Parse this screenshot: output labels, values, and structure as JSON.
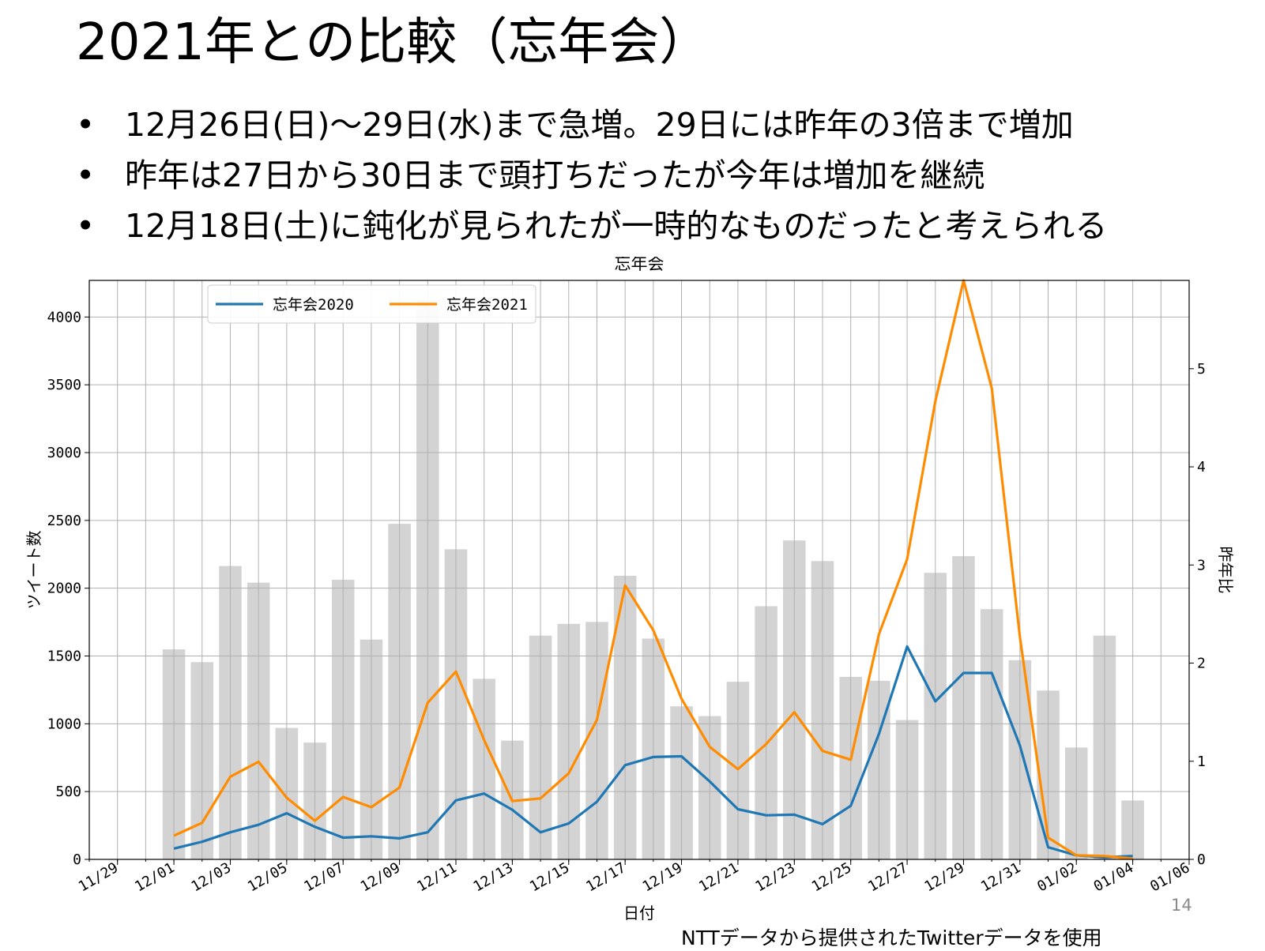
{
  "slide": {
    "title": "2021年との比較（忘年会）",
    "bullets": [
      "12月26日(日)〜29日(水)まで急増。29日には昨年の3倍まで増加",
      "昨年は27日から30日まで頭打ちだったが今年は増加を継続",
      "12月18日(土)に鈍化が見られたが一時的なものだったと考えられる"
    ],
    "bullet_glyph": "•",
    "page_number": "14",
    "source_note": "NTTデータから提供されたTwitterデータを使用"
  },
  "chart_data": {
    "type": "bar+line",
    "title": "忘年会",
    "xlabel": "日付",
    "ylabel_left": "ツイート数",
    "ylabel_right": "昨年比",
    "ylim_left": [
      0,
      4270
    ],
    "ylim_right": [
      0,
      5.9
    ],
    "xlim": [
      "11/28",
      "01/06"
    ],
    "grid": true,
    "legend_position": "upper-left",
    "xtick_labels": [
      "11/29",
      "12/01",
      "12/03",
      "12/05",
      "12/07",
      "12/09",
      "12/11",
      "12/13",
      "12/15",
      "12/17",
      "12/19",
      "12/21",
      "12/23",
      "12/25",
      "12/27",
      "12/29",
      "12/31",
      "01/02",
      "01/04",
      "01/06"
    ],
    "ytick_labels_left": [
      "0",
      "500",
      "1000",
      "1500",
      "2000",
      "2500",
      "3000",
      "3500",
      "4000"
    ],
    "ytick_labels_right": [
      "0",
      "1",
      "2",
      "3",
      "4",
      "5"
    ],
    "x": [
      "12/01",
      "12/02",
      "12/03",
      "12/04",
      "12/05",
      "12/06",
      "12/07",
      "12/08",
      "12/09",
      "12/10",
      "12/11",
      "12/12",
      "12/13",
      "12/14",
      "12/15",
      "12/16",
      "12/17",
      "12/18",
      "12/19",
      "12/20",
      "12/21",
      "12/22",
      "12/23",
      "12/24",
      "12/25",
      "12/26",
      "12/27",
      "12/28",
      "12/29",
      "12/30",
      "12/31",
      "01/01",
      "01/02",
      "01/03",
      "01/04"
    ],
    "bars": {
      "name": "昨年比",
      "axis": "right",
      "color": "#d3d3d3",
      "values": [
        2.14,
        2.01,
        2.99,
        2.82,
        1.34,
        1.19,
        2.85,
        2.24,
        3.42,
        5.7,
        3.16,
        1.84,
        1.21,
        2.28,
        2.4,
        2.42,
        2.89,
        2.25,
        1.56,
        1.46,
        1.81,
        2.58,
        3.25,
        3.04,
        1.86,
        1.82,
        1.42,
        2.92,
        3.09,
        2.55,
        2.03,
        1.72,
        1.14,
        2.28,
        0.6
      ]
    },
    "series": [
      {
        "name": "忘年会2020",
        "axis": "left",
        "color": "#1f77b4",
        "values": [
          80,
          130,
          200,
          255,
          340,
          240,
          160,
          170,
          155,
          200,
          435,
          485,
          365,
          200,
          265,
          425,
          695,
          755,
          760,
          575,
          370,
          325,
          330,
          260,
          395,
          925,
          1570,
          1165,
          1375,
          1375,
          840,
          90,
          30,
          15,
          25
        ]
      },
      {
        "name": "忘年会2021",
        "axis": "left",
        "color": "#ff8c00",
        "values": [
          175,
          270,
          610,
          720,
          455,
          285,
          460,
          385,
          530,
          1155,
          1385,
          880,
          430,
          450,
          635,
          1030,
          2020,
          1690,
          1185,
          830,
          665,
          850,
          1085,
          800,
          735,
          1660,
          2215,
          3380,
          4270,
          3475,
          1640,
          160,
          30,
          25,
          5
        ]
      }
    ]
  }
}
